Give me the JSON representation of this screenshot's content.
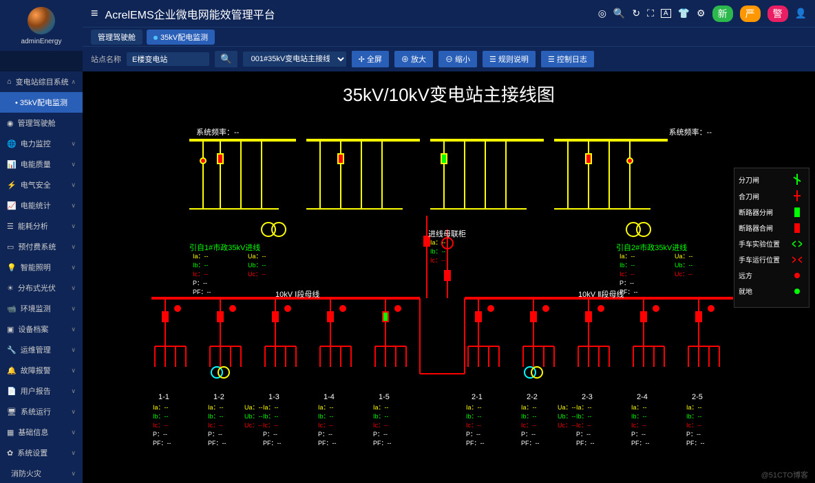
{
  "user": {
    "name": "adminEnergy"
  },
  "header": {
    "platform_title": "AcrelEMS企业微电网能效管理平台",
    "badges": {
      "b1": "新",
      "b2": "严",
      "b3": "警"
    }
  },
  "tabs": {
    "t1": "管理驾驶舱",
    "t2": "35kV配电监测"
  },
  "toolbar": {
    "site_label": "站点名称",
    "site_value": "E楼变电站",
    "circuit_value": "001#35kV变电站主接线",
    "fullscreen": "✢ 全屏",
    "zoom_in": "⊕ 放大",
    "zoom_out": "⊖ 缩小",
    "rules": "☰ 规则说明",
    "ctrl_log": "☰ 控制日志"
  },
  "sidebar": {
    "group": "变电站综目系统",
    "items": [
      "35kV配电监测",
      "管理驾驶舱",
      "电力监控",
      "电能质量",
      "电气安全",
      "电能统计",
      "能耗分析",
      "预付费系统",
      "智能照明",
      "分布式光伏",
      "环境监测",
      "设备档案",
      "运维管理",
      "故障报警",
      "用户报告",
      "系统运行",
      "基础信息",
      "系统设置",
      "消防火灾"
    ]
  },
  "diagram": {
    "title": "35kV/10kV变电站主接线图",
    "freq_left": "系统频率：--",
    "freq_right": "系统频率：--",
    "incoming1": "引自1#市政35kV进线",
    "incoming2": "引自2#市政35kV进线",
    "tie": "进线母联柜",
    "bus1": "10kV Ⅰ段母线",
    "bus2": "10kV Ⅱ段母线",
    "measures_iabc": [
      "Ia：--",
      "Ib：--",
      "Ic：--"
    ],
    "measures_uabc": [
      "Ua：--",
      "Ub：--",
      "Uc：--"
    ],
    "measures_pf": [
      "P：--",
      "PF：--"
    ],
    "feeders1": [
      "1-1",
      "1-2",
      "1-3",
      "1-4",
      "1-5"
    ],
    "feeders2": [
      "2-1",
      "2-2",
      "2-3",
      "2-4",
      "2-5"
    ],
    "colors": {
      "hv_line": "#ffff00",
      "lv_line": "#ff0000",
      "closed": "#00ff00",
      "bg": "#000000"
    }
  },
  "legend": {
    "items": [
      {
        "label": "分刀闸",
        "type": "green-i"
      },
      {
        "label": "合刀闸",
        "type": "red-i"
      },
      {
        "label": "断路器分闸",
        "type": "green-box"
      },
      {
        "label": "断路器合闸",
        "type": "red-box"
      },
      {
        "label": "手车实验位置",
        "type": "green-arrows"
      },
      {
        "label": "手车运行位置",
        "type": "red-arrows"
      },
      {
        "label": "远方",
        "type": "dot-red"
      },
      {
        "label": "就地",
        "type": "dot-green"
      }
    ]
  },
  "watermark": "@51CTO博客"
}
